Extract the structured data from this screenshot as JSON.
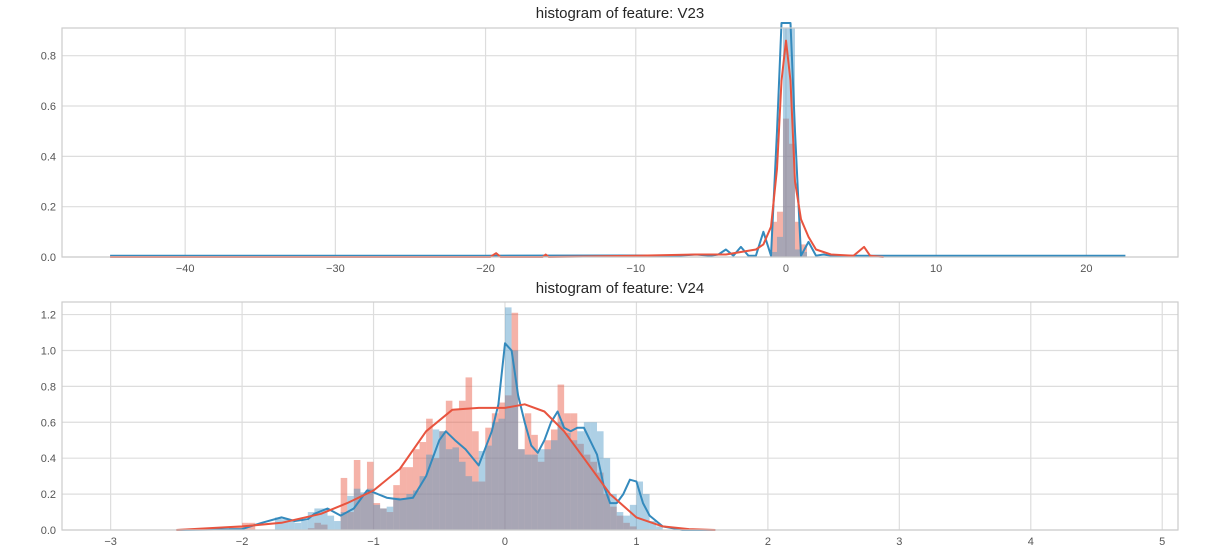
{
  "figure": {
    "colors": {
      "class_0": "#4c96c6",
      "class_0_line": "#348abd",
      "class_1": "#e8543f",
      "class_1_fill": "#f0a090",
      "overlap": "#9b98a8",
      "grid": "#dddddd",
      "axes_edge": "#cccccc",
      "tick_text": "#555555"
    }
  },
  "chart_data": [
    {
      "type": "histogram",
      "title": "histogram of feature: V23",
      "xlabel": "",
      "ylabel": "",
      "xlim": [
        -48.2,
        26.1
      ],
      "ylim": [
        0.0,
        0.91
      ],
      "xticks": [
        -40,
        -30,
        -20,
        -10,
        0,
        10,
        20
      ],
      "xtick_labels": [
        "−40",
        "−30",
        "−20",
        "−10",
        "0",
        "10",
        "20"
      ],
      "yticks": [
        0.0,
        0.2,
        0.4,
        0.6,
        0.8
      ],
      "ytick_labels": [
        "0.0",
        "0.2",
        "0.4",
        "0.6",
        "0.8"
      ],
      "grid": true,
      "series": [
        {
          "name": "class 0 (blue) KDE",
          "kind": "kde",
          "x": [
            -45.0,
            -20,
            -10,
            -7,
            -6,
            -5,
            -4.5,
            -4,
            -3.5,
            -3,
            -2.5,
            -2,
            -1.5,
            -1.0,
            -0.6,
            -0.3,
            0.0,
            0.3,
            0.6,
            1.0,
            1.5,
            2.0,
            2.5,
            3.0,
            4.0,
            5.0,
            8.0,
            22.6
          ],
          "y": [
            0.005,
            0.005,
            0.006,
            0.006,
            0.01,
            0.005,
            0.01,
            0.03,
            0.005,
            0.04,
            0.005,
            0.005,
            0.1,
            0.005,
            0.5,
            0.95,
            0.97,
            0.95,
            0.5,
            0.005,
            0.06,
            0.005,
            0.01,
            0.005,
            0.005,
            0.005,
            0.005,
            0.005
          ]
        },
        {
          "name": "class 1 (red) KDE",
          "kind": "kde",
          "x": [
            -45.0,
            -19.7,
            -19.3,
            -19.0,
            -16.2,
            -16.0,
            -15.8,
            -10,
            -6,
            -4,
            -3,
            -2,
            -1.5,
            -1.0,
            -0.6,
            -0.3,
            0.0,
            0.3,
            0.6,
            1.0,
            1.5,
            2.0,
            2.5,
            3,
            4.5,
            5.2,
            5.6,
            6.5
          ],
          "y": [
            0.0,
            0.0,
            0.015,
            0.0,
            0.0,
            0.01,
            0.0,
            0.005,
            0.01,
            0.01,
            0.02,
            0.03,
            0.05,
            0.12,
            0.35,
            0.7,
            0.86,
            0.7,
            0.3,
            0.15,
            0.08,
            0.03,
            0.02,
            0.01,
            0.005,
            0.04,
            0.005,
            0.0
          ]
        },
        {
          "name": "class 1 (red) histogram",
          "kind": "bar",
          "x": [
            -1.0,
            -0.6,
            -0.2,
            0.2,
            0.6,
            1.0
          ],
          "bin_width": 0.4,
          "values": [
            0.14,
            0.18,
            0.55,
            0.45,
            0.14,
            0.05
          ]
        },
        {
          "name": "class 0 (blue) histogram",
          "kind": "bar",
          "x": [
            -1.0,
            -0.6,
            -0.2,
            0.2,
            0.6,
            1.0
          ],
          "bin_width": 0.4,
          "values": [
            0.02,
            0.08,
            0.91,
            0.91,
            0.03,
            0.02
          ]
        }
      ]
    },
    {
      "type": "histogram",
      "title": "histogram of feature: V24",
      "xlabel": "",
      "ylabel": "",
      "xlim": [
        -3.37,
        5.12
      ],
      "ylim": [
        0.0,
        1.27
      ],
      "xticks": [
        -3,
        -2,
        -1,
        0,
        1,
        2,
        3,
        4,
        5
      ],
      "xtick_labels": [
        "−3",
        "−2",
        "−1",
        "0",
        "1",
        "2",
        "3",
        "4",
        "5"
      ],
      "yticks": [
        0.0,
        0.2,
        0.4,
        0.6,
        0.8,
        1.0,
        1.2
      ],
      "ytick_labels": [
        "0.0",
        "0.2",
        "0.4",
        "0.6",
        "0.8",
        "1.0",
        "1.2"
      ],
      "grid": true,
      "series": [
        {
          "name": "class 0 (blue) KDE",
          "kind": "kde",
          "x": [
            -2.5,
            -2.0,
            -1.85,
            -1.7,
            -1.6,
            -1.5,
            -1.45,
            -1.35,
            -1.25,
            -1.15,
            -1.05,
            -1.0,
            -0.9,
            -0.8,
            -0.7,
            -0.6,
            -0.5,
            -0.45,
            -0.38,
            -0.3,
            -0.2,
            -0.1,
            -0.05,
            0.0,
            0.05,
            0.1,
            0.15,
            0.2,
            0.25,
            0.3,
            0.35,
            0.4,
            0.45,
            0.5,
            0.55,
            0.6,
            0.7,
            0.75,
            0.8,
            0.85,
            0.9,
            0.95,
            1.0,
            1.05,
            1.1,
            1.2,
            1.35,
            1.6
          ],
          "y": [
            0.0,
            0.005,
            0.04,
            0.07,
            0.05,
            0.06,
            0.09,
            0.12,
            0.08,
            0.12,
            0.22,
            0.21,
            0.18,
            0.17,
            0.18,
            0.3,
            0.5,
            0.55,
            0.5,
            0.45,
            0.36,
            0.55,
            0.7,
            1.04,
            1.0,
            0.75,
            0.6,
            0.47,
            0.43,
            0.5,
            0.6,
            0.66,
            0.57,
            0.55,
            0.57,
            0.57,
            0.42,
            0.25,
            0.15,
            0.15,
            0.2,
            0.28,
            0.27,
            0.15,
            0.08,
            0.02,
            0.0,
            0.0
          ]
        },
        {
          "name": "class 1 (red) KDE",
          "kind": "kde",
          "x": [
            -2.5,
            -2.0,
            -1.7,
            -1.4,
            -1.2,
            -1.0,
            -0.8,
            -0.6,
            -0.4,
            -0.2,
            0.0,
            0.15,
            0.3,
            0.45,
            0.6,
            0.8,
            1.0,
            1.2,
            1.4,
            1.6
          ],
          "y": [
            0.0,
            0.02,
            0.04,
            0.09,
            0.15,
            0.22,
            0.34,
            0.55,
            0.67,
            0.68,
            0.68,
            0.7,
            0.66,
            0.55,
            0.4,
            0.2,
            0.07,
            0.02,
            0.005,
            0.0
          ]
        },
        {
          "name": "class 1 (red) histogram",
          "kind": "bar",
          "bin_width": 0.05,
          "x": [
            -2.1,
            -2.05,
            -2.0,
            -1.95,
            -1.5,
            -1.45,
            -1.4,
            -1.25,
            -1.2,
            -1.15,
            -1.1,
            -1.05,
            -1.0,
            -0.95,
            -0.9,
            -0.85,
            -0.8,
            -0.75,
            -0.7,
            -0.65,
            -0.6,
            -0.55,
            -0.5,
            -0.45,
            -0.4,
            -0.35,
            -0.3,
            -0.25,
            -0.2,
            -0.15,
            -0.1,
            -0.05,
            0.0,
            0.05,
            0.1,
            0.15,
            0.2,
            0.25,
            0.3,
            0.35,
            0.4,
            0.45,
            0.5,
            0.55,
            0.6,
            0.65,
            0.7,
            0.75,
            0.8,
            0.85,
            0.9,
            0.95
          ],
          "values": [
            0.02,
            0.02,
            0.04,
            0.04,
            0.01,
            0.04,
            0.03,
            0.29,
            0.1,
            0.39,
            0.2,
            0.38,
            0.15,
            0.12,
            0.1,
            0.25,
            0.35,
            0.35,
            0.45,
            0.49,
            0.62,
            0.4,
            0.55,
            0.72,
            0.67,
            0.72,
            0.85,
            0.55,
            0.27,
            0.57,
            0.65,
            0.71,
            0.75,
            1.21,
            0.45,
            0.65,
            0.53,
            0.38,
            0.5,
            0.56,
            0.81,
            0.65,
            0.65,
            0.48,
            0.42,
            0.38,
            0.32,
            0.2,
            0.13,
            0.08,
            0.04,
            0.02
          ]
        },
        {
          "name": "class 0 (blue) histogram",
          "kind": "bar",
          "bin_width": 0.05,
          "x": [
            -1.75,
            -1.7,
            -1.65,
            -1.6,
            -1.55,
            -1.5,
            -1.45,
            -1.4,
            -1.35,
            -1.3,
            -1.25,
            -1.2,
            -1.15,
            -1.1,
            -1.05,
            -1.0,
            -0.95,
            -0.9,
            -0.85,
            -0.8,
            -0.75,
            -0.7,
            -0.65,
            -0.6,
            -0.55,
            -0.5,
            -0.45,
            -0.4,
            -0.35,
            -0.3,
            -0.25,
            -0.2,
            -0.15,
            -0.1,
            -0.05,
            0.0,
            0.05,
            0.1,
            0.15,
            0.2,
            0.25,
            0.3,
            0.35,
            0.4,
            0.45,
            0.5,
            0.55,
            0.6,
            0.65,
            0.7,
            0.75,
            0.8,
            0.85,
            0.9,
            0.95,
            1.0,
            1.05,
            1.1,
            1.15
          ],
          "values": [
            0.07,
            0.06,
            0.05,
            0.04,
            0.05,
            0.1,
            0.12,
            0.12,
            0.08,
            0.05,
            0.1,
            0.19,
            0.23,
            0.21,
            0.23,
            0.14,
            0.12,
            0.13,
            0.18,
            0.17,
            0.2,
            0.22,
            0.3,
            0.42,
            0.56,
            0.55,
            0.45,
            0.46,
            0.38,
            0.3,
            0.27,
            0.44,
            0.47,
            0.6,
            0.62,
            1.24,
            1.0,
            0.45,
            0.42,
            0.42,
            0.45,
            0.45,
            0.5,
            0.6,
            0.54,
            0.5,
            0.55,
            0.6,
            0.6,
            0.55,
            0.4,
            0.2,
            0.1,
            0.08,
            0.14,
            0.27,
            0.2,
            0.05,
            0.02
          ]
        }
      ]
    }
  ]
}
